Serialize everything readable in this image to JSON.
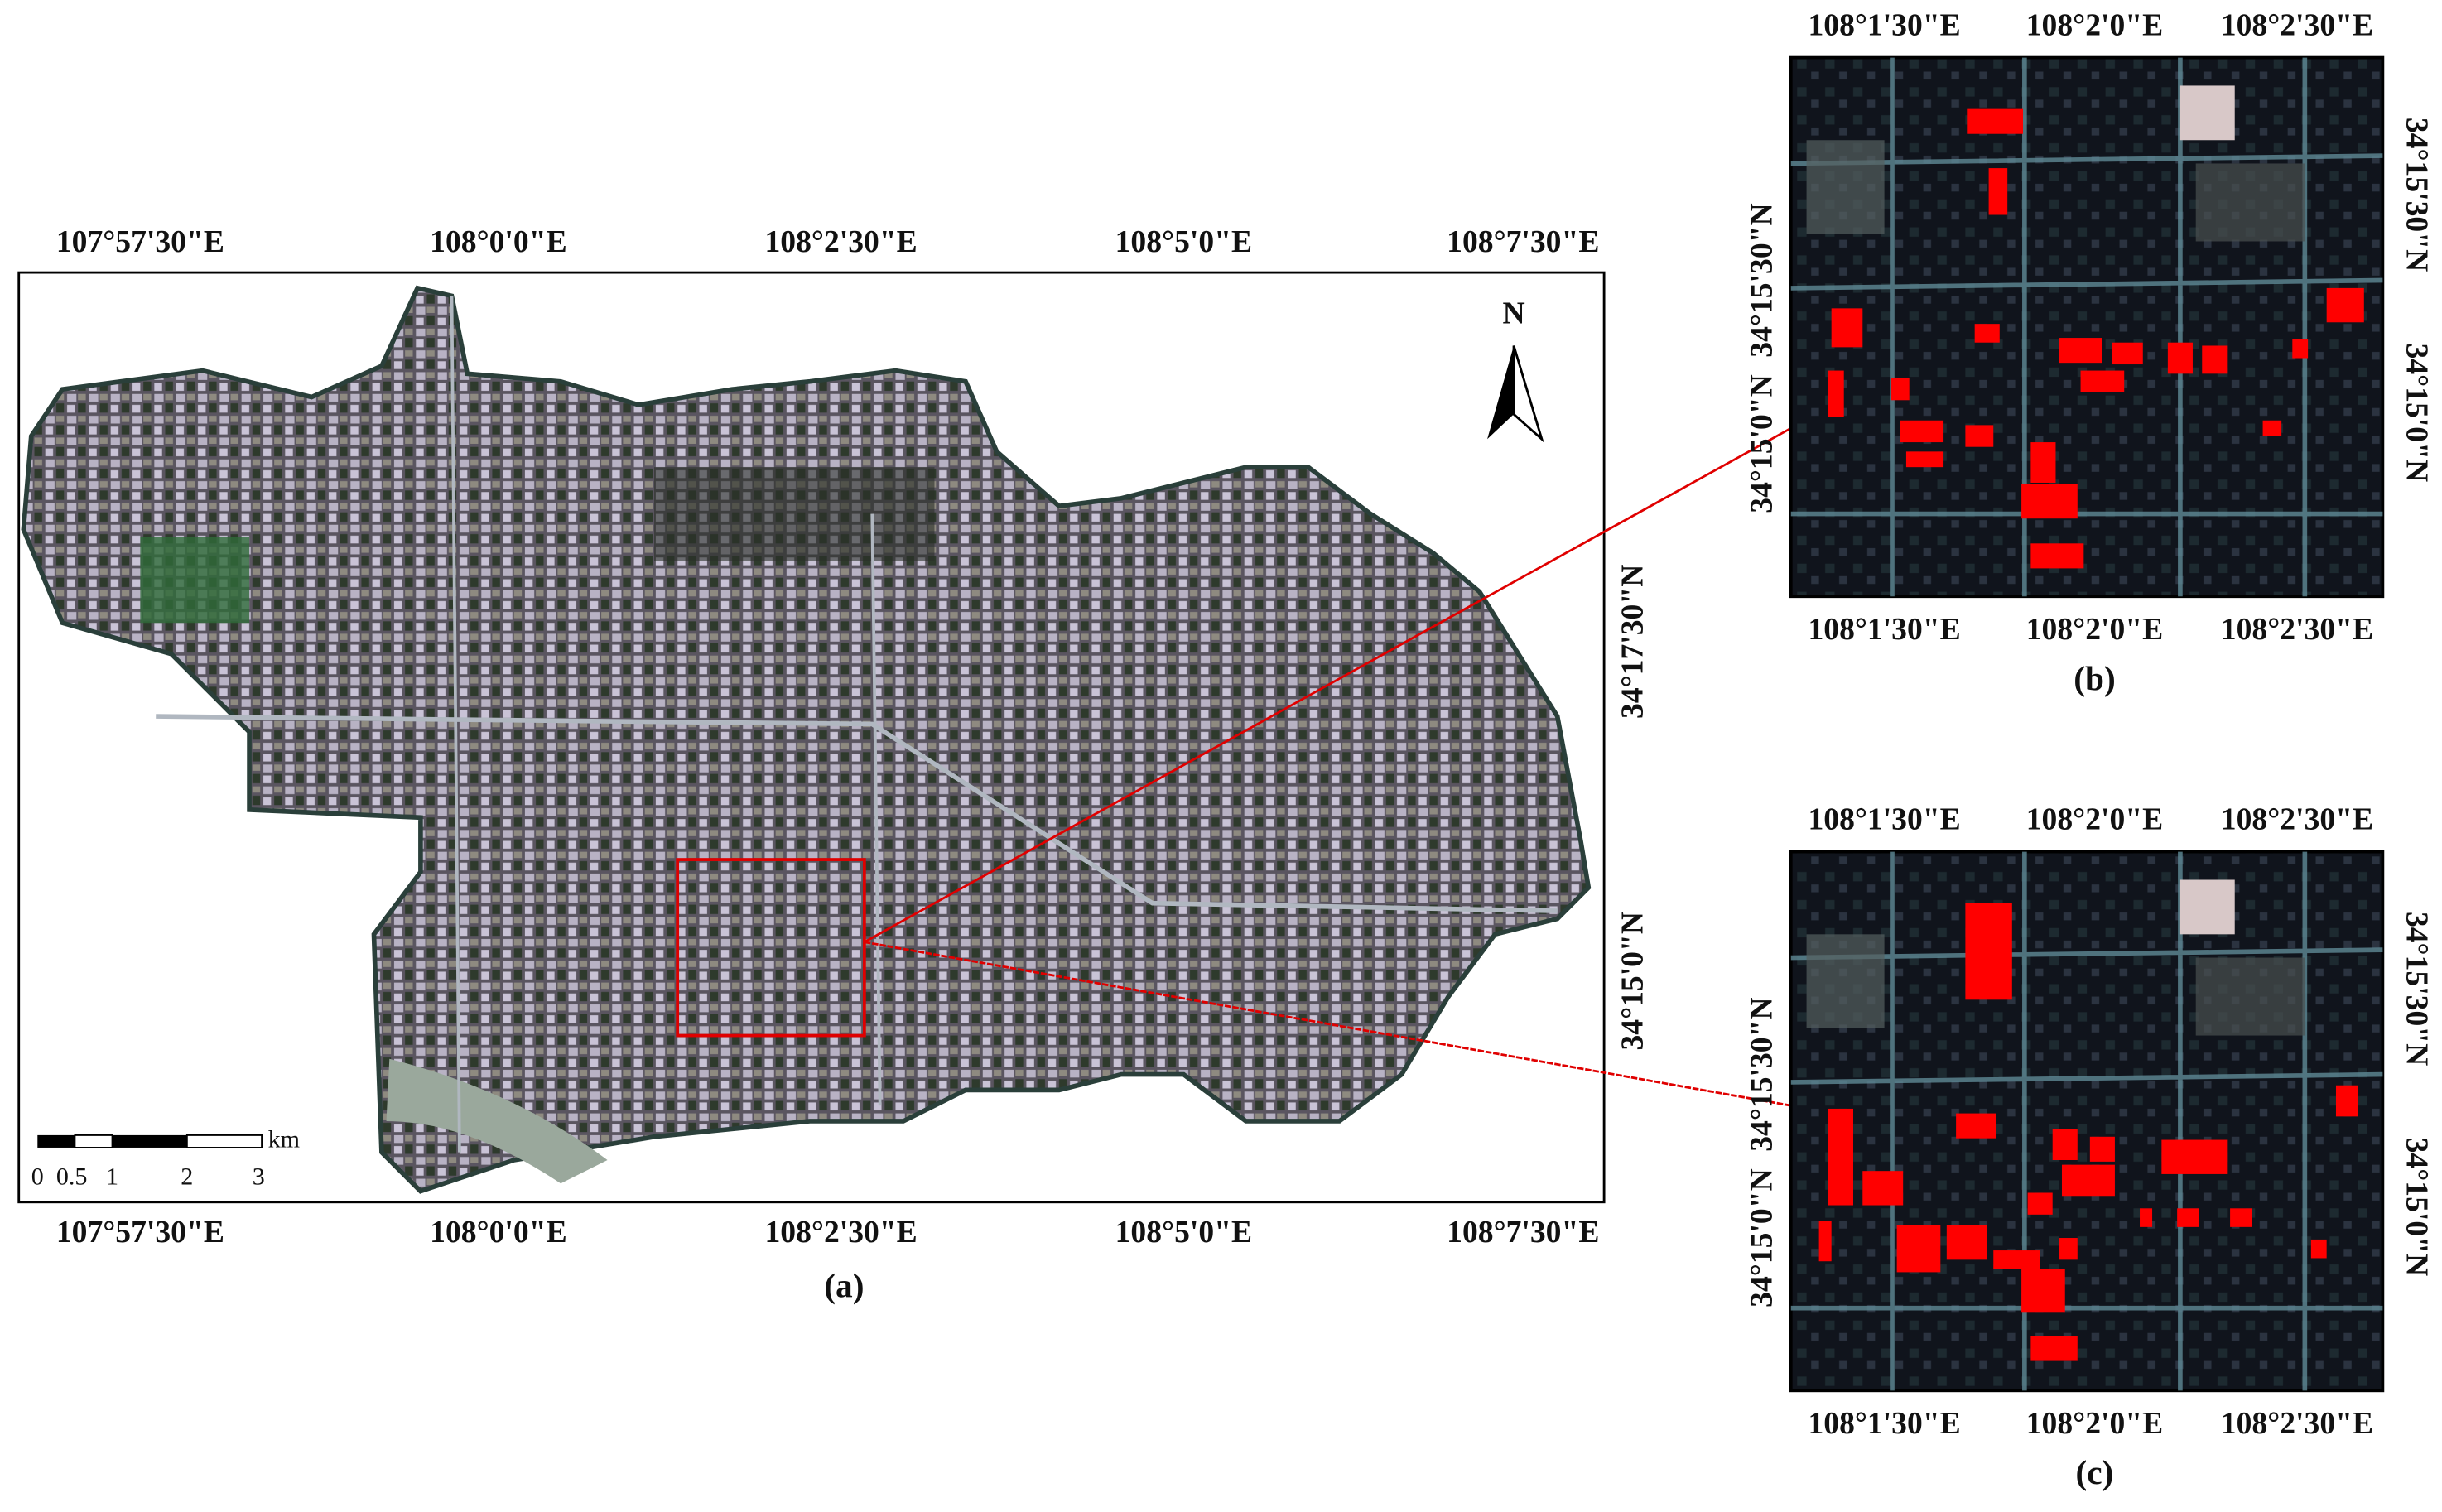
{
  "panels": [
    {
      "caption": "(a)",
      "top_labels": [
        "107°57'30\"E",
        "108°0'0\"E",
        "108°2'30\"E",
        "108°5'0\"E",
        "108°7'30\"E"
      ],
      "bottom_labels": [
        "107°57'30\"E",
        "108°0'0\"E",
        "108°2'30\"E",
        "108°5'0\"E",
        "108°7'30\"E"
      ],
      "right_labels": [
        "34°17'30\"N",
        "34°15'0\"N"
      ],
      "north": "N",
      "scale_bar": {
        "unit": "km",
        "labels": [
          "0",
          "0.5",
          "1",
          "2",
          "3"
        ]
      }
    },
    {
      "caption": "(b)",
      "top_labels": [
        "108°1'30\"E",
        "108°2'0\"E",
        "108°2'30\"E"
      ],
      "bottom_labels": [
        "108°1'30\"E",
        "108°2'0\"E",
        "108°2'30\"E"
      ],
      "left_labels": [
        "34°15'30\"N",
        "34°15'0\"N"
      ],
      "right_labels": [
        "34°15'30\"N",
        "34°15'0\"N"
      ]
    },
    {
      "caption": "(c)",
      "top_labels": [
        "108°1'30\"E",
        "108°2'0\"E",
        "108°2'30\"E"
      ],
      "bottom_labels": [
        "108°1'30\"E",
        "108°2'0\"E",
        "108°2'30\"E"
      ],
      "left_labels": [
        "34°15'30\"N",
        "34°15'0\"N"
      ],
      "right_labels": [
        "34°15'30\"N",
        "34°15'0\"N"
      ]
    }
  ]
}
